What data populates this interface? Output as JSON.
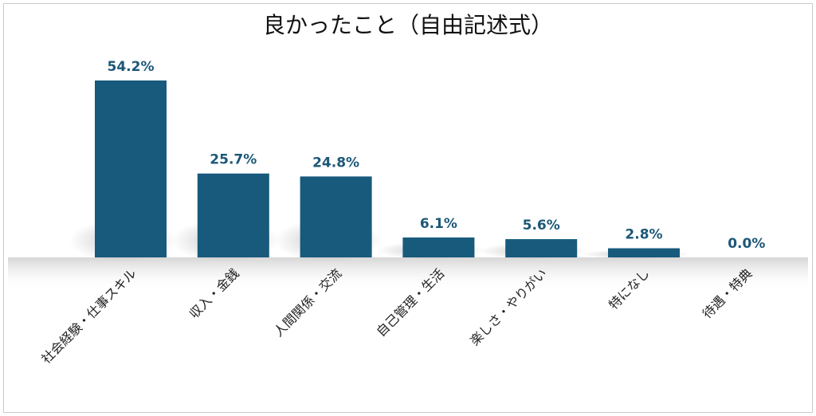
{
  "chart_data": {
    "type": "bar",
    "title": "良かったこと（自由記述式）",
    "categories": [
      "社会経験・仕事スキル",
      "収入・金銭",
      "人間関係・交流",
      "自己管理・生活",
      "楽しさ・やりがい",
      "特になし",
      "待遇・特典"
    ],
    "values": [
      54.2,
      25.7,
      24.8,
      6.1,
      5.6,
      2.8,
      0.0
    ],
    "value_labels": [
      "54.2%",
      "25.7%",
      "24.8%",
      "6.1%",
      "5.6%",
      "2.8%",
      "0.0%"
    ],
    "unit": "%",
    "ylim": [
      0,
      54.2
    ],
    "grid": false,
    "legend": "none",
    "bar_color": "#175a7c",
    "label_color": "#1c5777"
  }
}
